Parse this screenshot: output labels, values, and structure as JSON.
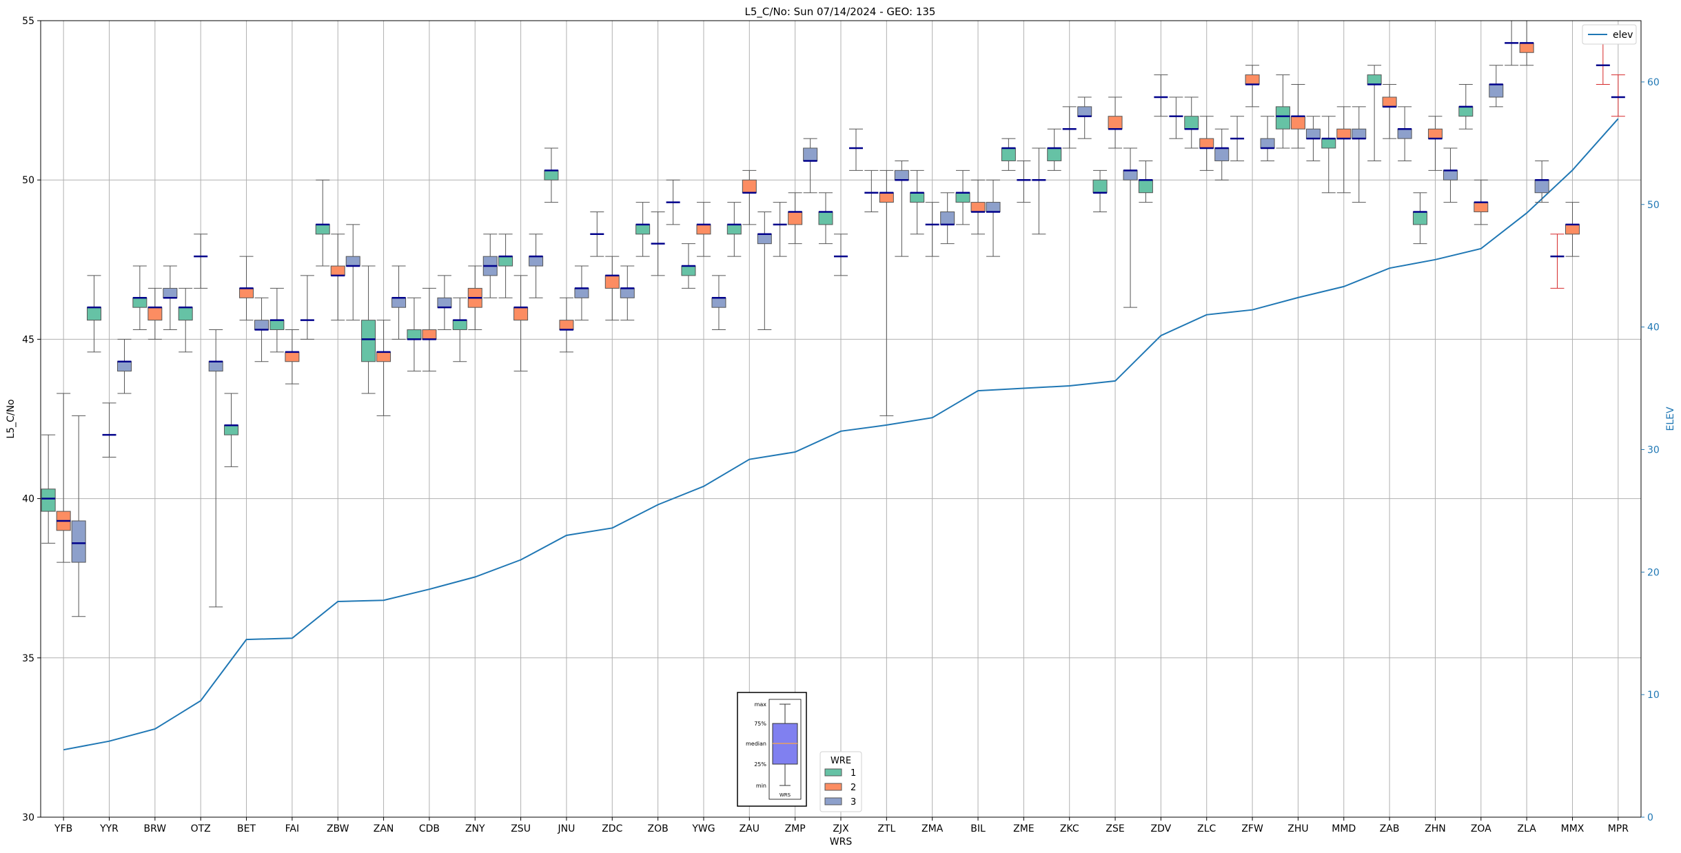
{
  "chart_data": {
    "type": "boxplot",
    "title": "L5_C/No: Sun 07/14/2024 - GEO: 135",
    "xlabel": "WRS",
    "ylabel": "L5_C/No",
    "y2label": "ELEV",
    "ylim": [
      30,
      55
    ],
    "y2lim": [
      0,
      65
    ],
    "yticks": [
      30,
      35,
      40,
      45,
      50,
      55
    ],
    "y2ticks": [
      0,
      10,
      20,
      30,
      40,
      50,
      60
    ],
    "grid": true,
    "categories": [
      "YFB",
      "YYR",
      "BRW",
      "OTZ",
      "BET",
      "FAI",
      "ZBW",
      "ZAN",
      "CDB",
      "ZNY",
      "ZSU",
      "JNU",
      "ZDC",
      "ZOB",
      "YWG",
      "ZAU",
      "ZMP",
      "ZJX",
      "ZTL",
      "ZMA",
      "BIL",
      "ZME",
      "ZKC",
      "ZSE",
      "ZDV",
      "ZLC",
      "ZFW",
      "ZHU",
      "MMD",
      "ZAB",
      "ZHN",
      "ZOA",
      "ZLA",
      "MMX",
      "MPR"
    ],
    "wre_colors": {
      "1": "#66c2a5",
      "2": "#fc8d62",
      "3": "#8da0cb"
    },
    "boxes": [
      {
        "cat": "YFB",
        "wre": 1,
        "min": 38.6,
        "q1": 39.6,
        "median": 40.0,
        "q3": 40.3,
        "max": 42.0
      },
      {
        "cat": "YFB",
        "wre": 2,
        "min": 38.0,
        "q1": 39.0,
        "median": 39.3,
        "q3": 39.6,
        "max": 43.3
      },
      {
        "cat": "YFB",
        "wre": 3,
        "min": 36.3,
        "q1": 38.0,
        "median": 38.6,
        "q3": 39.3,
        "max": 42.6
      },
      {
        "cat": "YYR",
        "wre": 1,
        "min": 44.6,
        "q1": 45.6,
        "median": 46.0,
        "q3": 46.0,
        "max": 47.0
      },
      {
        "cat": "YYR",
        "wre": 2,
        "min": 41.3,
        "q1": 42.0,
        "median": 42.0,
        "q3": 42.0,
        "max": 43.0
      },
      {
        "cat": "YYR",
        "wre": 3,
        "min": 43.3,
        "q1": 44.0,
        "median": 44.3,
        "q3": 44.3,
        "max": 45.0
      },
      {
        "cat": "BRW",
        "wre": 1,
        "min": 45.3,
        "q1": 46.0,
        "median": 46.3,
        "q3": 46.3,
        "max": 47.3
      },
      {
        "cat": "BRW",
        "wre": 2,
        "min": 45.0,
        "q1": 45.6,
        "median": 46.0,
        "q3": 46.0,
        "max": 46.6
      },
      {
        "cat": "BRW",
        "wre": 3,
        "min": 45.3,
        "q1": 46.3,
        "median": 46.3,
        "q3": 46.6,
        "max": 47.3
      },
      {
        "cat": "OTZ",
        "wre": 1,
        "min": 44.6,
        "q1": 45.6,
        "median": 46.0,
        "q3": 46.0,
        "max": 46.6
      },
      {
        "cat": "OTZ",
        "wre": 2,
        "min": 46.6,
        "q1": 47.6,
        "median": 47.6,
        "q3": 47.6,
        "max": 48.3
      },
      {
        "cat": "OTZ",
        "wre": 3,
        "min": 36.6,
        "q1": 44.0,
        "median": 44.3,
        "q3": 44.3,
        "max": 45.3
      },
      {
        "cat": "BET",
        "wre": 1,
        "min": 41.0,
        "q1": 42.0,
        "median": 42.3,
        "q3": 42.3,
        "max": 43.3
      },
      {
        "cat": "BET",
        "wre": 2,
        "min": 45.6,
        "q1": 46.3,
        "median": 46.6,
        "q3": 46.6,
        "max": 47.6
      },
      {
        "cat": "BET",
        "wre": 3,
        "min": 44.3,
        "q1": 45.3,
        "median": 45.3,
        "q3": 45.6,
        "max": 46.3
      },
      {
        "cat": "FAI",
        "wre": 1,
        "min": 44.6,
        "q1": 45.3,
        "median": 45.6,
        "q3": 45.6,
        "max": 46.6
      },
      {
        "cat": "FAI",
        "wre": 2,
        "min": 43.6,
        "q1": 44.3,
        "median": 44.6,
        "q3": 44.6,
        "max": 45.3
      },
      {
        "cat": "FAI",
        "wre": 3,
        "min": 45.0,
        "q1": 45.6,
        "median": 45.6,
        "q3": 45.6,
        "max": 47.0
      },
      {
        "cat": "ZBW",
        "wre": 1,
        "min": 47.3,
        "q1": 48.3,
        "median": 48.6,
        "q3": 48.6,
        "max": 50.0
      },
      {
        "cat": "ZBW",
        "wre": 2,
        "min": 45.6,
        "q1": 47.0,
        "median": 47.0,
        "q3": 47.3,
        "max": 48.3
      },
      {
        "cat": "ZBW",
        "wre": 3,
        "min": 45.6,
        "q1": 47.3,
        "median": 47.3,
        "q3": 47.6,
        "max": 48.6
      },
      {
        "cat": "ZAN",
        "wre": 1,
        "min": 43.3,
        "q1": 44.3,
        "median": 45.0,
        "q3": 45.6,
        "max": 47.3
      },
      {
        "cat": "ZAN",
        "wre": 2,
        "min": 42.6,
        "q1": 44.3,
        "median": 44.6,
        "q3": 44.6,
        "max": 45.6
      },
      {
        "cat": "ZAN",
        "wre": 3,
        "min": 45.0,
        "q1": 46.0,
        "median": 46.3,
        "q3": 46.3,
        "max": 47.3
      },
      {
        "cat": "CDB",
        "wre": 1,
        "min": 44.0,
        "q1": 45.0,
        "median": 45.0,
        "q3": 45.3,
        "max": 46.3
      },
      {
        "cat": "CDB",
        "wre": 2,
        "min": 44.0,
        "q1": 45.0,
        "median": 45.0,
        "q3": 45.3,
        "max": 46.6
      },
      {
        "cat": "CDB",
        "wre": 3,
        "min": 45.3,
        "q1": 46.0,
        "median": 46.0,
        "q3": 46.3,
        "max": 47.0
      },
      {
        "cat": "ZNY",
        "wre": 1,
        "min": 44.3,
        "q1": 45.3,
        "median": 45.6,
        "q3": 45.6,
        "max": 46.3
      },
      {
        "cat": "ZNY",
        "wre": 2,
        "min": 45.3,
        "q1": 46.0,
        "median": 46.3,
        "q3": 46.6,
        "max": 47.3
      },
      {
        "cat": "ZNY",
        "wre": 3,
        "min": 46.3,
        "q1": 47.0,
        "median": 47.3,
        "q3": 47.6,
        "max": 48.3
      },
      {
        "cat": "ZSU",
        "wre": 1,
        "min": 46.3,
        "q1": 47.3,
        "median": 47.6,
        "q3": 47.6,
        "max": 48.3
      },
      {
        "cat": "ZSU",
        "wre": 2,
        "min": 44.0,
        "q1": 45.6,
        "median": 46.0,
        "q3": 46.0,
        "max": 47.0
      },
      {
        "cat": "ZSU",
        "wre": 3,
        "min": 46.3,
        "q1": 47.3,
        "median": 47.6,
        "q3": 47.6,
        "max": 48.3
      },
      {
        "cat": "JNU",
        "wre": 1,
        "min": 49.3,
        "q1": 50.0,
        "median": 50.3,
        "q3": 50.3,
        "max": 51.0
      },
      {
        "cat": "JNU",
        "wre": 2,
        "min": 44.6,
        "q1": 45.3,
        "median": 45.3,
        "q3": 45.6,
        "max": 46.3
      },
      {
        "cat": "JNU",
        "wre": 3,
        "min": 45.6,
        "q1": 46.3,
        "median": 46.6,
        "q3": 46.6,
        "max": 47.3
      },
      {
        "cat": "ZDC",
        "wre": 1,
        "min": 47.6,
        "q1": 48.3,
        "median": 48.3,
        "q3": 48.3,
        "max": 49.0
      },
      {
        "cat": "ZDC",
        "wre": 2,
        "min": 45.6,
        "q1": 46.6,
        "median": 47.0,
        "q3": 47.0,
        "max": 47.6
      },
      {
        "cat": "ZDC",
        "wre": 3,
        "min": 45.6,
        "q1": 46.3,
        "median": 46.6,
        "q3": 46.6,
        "max": 47.3
      },
      {
        "cat": "ZOB",
        "wre": 1,
        "min": 47.6,
        "q1": 48.3,
        "median": 48.6,
        "q3": 48.6,
        "max": 49.3
      },
      {
        "cat": "ZOB",
        "wre": 2,
        "min": 47.0,
        "q1": 48.0,
        "median": 48.0,
        "q3": 48.0,
        "max": 49.0
      },
      {
        "cat": "ZOB",
        "wre": 3,
        "min": 48.6,
        "q1": 49.3,
        "median": 49.3,
        "q3": 49.3,
        "max": 50.0
      },
      {
        "cat": "YWG",
        "wre": 1,
        "min": 46.6,
        "q1": 47.0,
        "median": 47.3,
        "q3": 47.3,
        "max": 48.0
      },
      {
        "cat": "YWG",
        "wre": 2,
        "min": 47.6,
        "q1": 48.3,
        "median": 48.6,
        "q3": 48.6,
        "max": 49.3
      },
      {
        "cat": "YWG",
        "wre": 3,
        "min": 45.3,
        "q1": 46.0,
        "median": 46.3,
        "q3": 46.3,
        "max": 47.0
      },
      {
        "cat": "ZAU",
        "wre": 1,
        "min": 47.6,
        "q1": 48.3,
        "median": 48.6,
        "q3": 48.6,
        "max": 49.3
      },
      {
        "cat": "ZAU",
        "wre": 2,
        "min": 48.6,
        "q1": 49.6,
        "median": 49.6,
        "q3": 50.0,
        "max": 50.3
      },
      {
        "cat": "ZAU",
        "wre": 3,
        "min": 45.3,
        "q1": 48.0,
        "median": 48.3,
        "q3": 48.3,
        "max": 49.0
      },
      {
        "cat": "ZMP",
        "wre": 1,
        "min": 47.6,
        "q1": 48.6,
        "median": 48.6,
        "q3": 48.6,
        "max": 49.3
      },
      {
        "cat": "ZMP",
        "wre": 2,
        "min": 48.0,
        "q1": 48.6,
        "median": 49.0,
        "q3": 49.0,
        "max": 49.6
      },
      {
        "cat": "ZMP",
        "wre": 3,
        "min": 49.6,
        "q1": 50.6,
        "median": 50.6,
        "q3": 51.0,
        "max": 51.3
      },
      {
        "cat": "ZJX",
        "wre": 1,
        "min": 48.0,
        "q1": 48.6,
        "median": 49.0,
        "q3": 49.0,
        "max": 49.6
      },
      {
        "cat": "ZJX",
        "wre": 2,
        "min": 47.0,
        "q1": 47.6,
        "median": 47.6,
        "q3": 47.6,
        "max": 48.3
      },
      {
        "cat": "ZJX",
        "wre": 3,
        "min": 50.3,
        "q1": 51.0,
        "median": 51.0,
        "q3": 51.0,
        "max": 51.6
      },
      {
        "cat": "ZTL",
        "wre": 1,
        "min": 49.0,
        "q1": 49.6,
        "median": 49.6,
        "q3": 49.6,
        "max": 50.3
      },
      {
        "cat": "ZTL",
        "wre": 2,
        "min": 42.6,
        "q1": 49.3,
        "median": 49.6,
        "q3": 49.6,
        "max": 50.3
      },
      {
        "cat": "ZTL",
        "wre": 3,
        "min": 47.6,
        "q1": 50.0,
        "median": 50.0,
        "q3": 50.3,
        "max": 50.6
      },
      {
        "cat": "ZMA",
        "wre": 1,
        "min": 48.3,
        "q1": 49.3,
        "median": 49.6,
        "q3": 49.6,
        "max": 50.3
      },
      {
        "cat": "ZMA",
        "wre": 2,
        "min": 47.6,
        "q1": 48.6,
        "median": 48.6,
        "q3": 48.6,
        "max": 49.3
      },
      {
        "cat": "ZMA",
        "wre": 3,
        "min": 48.0,
        "q1": 48.6,
        "median": 48.6,
        "q3": 49.0,
        "max": 49.6
      },
      {
        "cat": "BIL",
        "wre": 1,
        "min": 48.6,
        "q1": 49.3,
        "median": 49.6,
        "q3": 49.6,
        "max": 50.3
      },
      {
        "cat": "BIL",
        "wre": 2,
        "min": 48.3,
        "q1": 49.0,
        "median": 49.0,
        "q3": 49.3,
        "max": 50.0
      },
      {
        "cat": "BIL",
        "wre": 3,
        "min": 47.6,
        "q1": 49.0,
        "median": 49.0,
        "q3": 49.3,
        "max": 50.0
      },
      {
        "cat": "ZME",
        "wre": 1,
        "min": 50.3,
        "q1": 50.6,
        "median": 51.0,
        "q3": 51.0,
        "max": 51.3
      },
      {
        "cat": "ZME",
        "wre": 2,
        "min": 49.3,
        "q1": 50.0,
        "median": 50.0,
        "q3": 50.0,
        "max": 50.6
      },
      {
        "cat": "ZME",
        "wre": 3,
        "min": 48.3,
        "q1": 50.0,
        "median": 50.0,
        "q3": 50.0,
        "max": 51.0
      },
      {
        "cat": "ZKC",
        "wre": 1,
        "min": 50.3,
        "q1": 50.6,
        "median": 51.0,
        "q3": 51.0,
        "max": 51.6
      },
      {
        "cat": "ZKC",
        "wre": 2,
        "min": 51.0,
        "q1": 51.6,
        "median": 51.6,
        "q3": 51.6,
        "max": 52.3
      },
      {
        "cat": "ZKC",
        "wre": 3,
        "min": 51.3,
        "q1": 52.0,
        "median": 52.0,
        "q3": 52.3,
        "max": 52.6
      },
      {
        "cat": "ZSE",
        "wre": 1,
        "min": 49.0,
        "q1": 49.6,
        "median": 49.6,
        "q3": 50.0,
        "max": 50.3
      },
      {
        "cat": "ZSE",
        "wre": 2,
        "min": 51.0,
        "q1": 51.6,
        "median": 51.6,
        "q3": 52.0,
        "max": 52.6
      },
      {
        "cat": "ZSE",
        "wre": 3,
        "min": 46.0,
        "q1": 50.0,
        "median": 50.3,
        "q3": 50.3,
        "max": 51.0
      },
      {
        "cat": "ZDV",
        "wre": 1,
        "min": 49.3,
        "q1": 49.6,
        "median": 50.0,
        "q3": 50.0,
        "max": 50.6
      },
      {
        "cat": "ZDV",
        "wre": 2,
        "min": 52.0,
        "q1": 52.6,
        "median": 52.6,
        "q3": 52.6,
        "max": 53.3
      },
      {
        "cat": "ZDV",
        "wre": 3,
        "min": 51.3,
        "q1": 52.0,
        "median": 52.0,
        "q3": 52.0,
        "max": 52.6
      },
      {
        "cat": "ZLC",
        "wre": 1,
        "min": 51.0,
        "q1": 51.6,
        "median": 51.6,
        "q3": 52.0,
        "max": 52.6
      },
      {
        "cat": "ZLC",
        "wre": 2,
        "min": 50.3,
        "q1": 51.0,
        "median": 51.0,
        "q3": 51.3,
        "max": 52.0
      },
      {
        "cat": "ZLC",
        "wre": 3,
        "min": 50.0,
        "q1": 50.6,
        "median": 51.0,
        "q3": 51.0,
        "max": 51.6
      },
      {
        "cat": "ZFW",
        "wre": 1,
        "min": 50.6,
        "q1": 51.3,
        "median": 51.3,
        "q3": 51.3,
        "max": 52.0
      },
      {
        "cat": "ZFW",
        "wre": 2,
        "min": 52.3,
        "q1": 53.0,
        "median": 53.0,
        "q3": 53.3,
        "max": 53.6
      },
      {
        "cat": "ZFW",
        "wre": 3,
        "min": 50.6,
        "q1": 51.0,
        "median": 51.0,
        "q3": 51.3,
        "max": 52.0
      },
      {
        "cat": "ZHU",
        "wre": 1,
        "min": 51.0,
        "q1": 51.6,
        "median": 52.0,
        "q3": 52.3,
        "max": 53.3
      },
      {
        "cat": "ZHU",
        "wre": 2,
        "min": 51.0,
        "q1": 51.6,
        "median": 52.0,
        "q3": 52.0,
        "max": 53.0
      },
      {
        "cat": "ZHU",
        "wre": 3,
        "min": 50.6,
        "q1": 51.3,
        "median": 51.3,
        "q3": 51.6,
        "max": 52.0
      },
      {
        "cat": "MMD",
        "wre": 1,
        "min": 49.6,
        "q1": 51.0,
        "median": 51.3,
        "q3": 51.3,
        "max": 52.0
      },
      {
        "cat": "MMD",
        "wre": 2,
        "min": 49.6,
        "q1": 51.3,
        "median": 51.3,
        "q3": 51.6,
        "max": 52.3
      },
      {
        "cat": "MMD",
        "wre": 3,
        "min": 49.3,
        "q1": 51.3,
        "median": 51.3,
        "q3": 51.6,
        "max": 52.3
      },
      {
        "cat": "ZAB",
        "wre": 1,
        "min": 50.6,
        "q1": 53.0,
        "median": 53.0,
        "q3": 53.3,
        "max": 53.6
      },
      {
        "cat": "ZAB",
        "wre": 2,
        "min": 51.3,
        "q1": 52.3,
        "median": 52.3,
        "q3": 52.6,
        "max": 53.0
      },
      {
        "cat": "ZAB",
        "wre": 3,
        "min": 50.6,
        "q1": 51.3,
        "median": 51.6,
        "q3": 51.6,
        "max": 52.3
      },
      {
        "cat": "ZHN",
        "wre": 1,
        "min": 48.0,
        "q1": 48.6,
        "median": 49.0,
        "q3": 49.0,
        "max": 49.6
      },
      {
        "cat": "ZHN",
        "wre": 2,
        "min": 50.3,
        "q1": 51.3,
        "median": 51.3,
        "q3": 51.6,
        "max": 52.0
      },
      {
        "cat": "ZHN",
        "wre": 3,
        "min": 49.3,
        "q1": 50.0,
        "median": 50.3,
        "q3": 50.3,
        "max": 51.0
      },
      {
        "cat": "ZOA",
        "wre": 1,
        "min": 51.6,
        "q1": 52.0,
        "median": 52.3,
        "q3": 52.3,
        "max": 53.0
      },
      {
        "cat": "ZOA",
        "wre": 2,
        "min": 48.6,
        "q1": 49.0,
        "median": 49.3,
        "q3": 49.3,
        "max": 50.0
      },
      {
        "cat": "ZOA",
        "wre": 3,
        "min": 52.3,
        "q1": 52.6,
        "median": 53.0,
        "q3": 53.0,
        "max": 53.6
      },
      {
        "cat": "ZLA",
        "wre": 1,
        "min": 53.6,
        "q1": 54.3,
        "median": 54.3,
        "q3": 54.3,
        "max": 55.0
      },
      {
        "cat": "ZLA",
        "wre": 2,
        "min": 53.6,
        "q1": 54.0,
        "median": 54.3,
        "q3": 54.3,
        "max": 55.0
      },
      {
        "cat": "ZLA",
        "wre": 3,
        "min": 49.3,
        "q1": 49.6,
        "median": 50.0,
        "q3": 50.0,
        "max": 50.6
      },
      {
        "cat": "MMX",
        "wre": 1,
        "min": 46.6,
        "q1": 47.6,
        "median": 47.6,
        "q3": 47.6,
        "max": 48.3,
        "red": true
      },
      {
        "cat": "MMX",
        "wre": 2,
        "min": 47.6,
        "q1": 48.3,
        "median": 48.6,
        "q3": 48.6,
        "max": 49.3
      },
      {
        "cat": "MPR",
        "wre": 1,
        "min": 53.0,
        "q1": 53.6,
        "median": 53.6,
        "q3": 53.6,
        "max": 54.3,
        "red": true
      },
      {
        "cat": "MPR",
        "wre": 2,
        "min": 52.0,
        "q1": 52.6,
        "median": 52.6,
        "q3": 52.6,
        "max": 53.3,
        "red": true
      }
    ],
    "series": [
      {
        "name": "elev",
        "axis": "right",
        "color": "#1f77b4",
        "values": [
          5.5,
          6.2,
          7.2,
          9.5,
          14.5,
          14.6,
          17.6,
          17.7,
          18.6,
          19.6,
          21.0,
          23.0,
          23.6,
          25.5,
          27.0,
          29.2,
          29.8,
          31.5,
          32.0,
          32.6,
          34.8,
          35.0,
          35.2,
          35.6,
          39.3,
          41.0,
          41.4,
          42.4,
          43.3,
          44.8,
          45.5,
          46.4,
          49.3,
          52.8,
          57.0
        ]
      }
    ],
    "legends": {
      "line": {
        "entries": [
          "elev"
        ],
        "placement": "top-right"
      },
      "wre": {
        "title": "WRE",
        "entries": [
          "1",
          "2",
          "3"
        ],
        "placement": "lower-center"
      }
    },
    "key_box": {
      "labels": [
        "max",
        "75%",
        "median",
        "25%",
        "min"
      ],
      "xlabel": "WRS"
    }
  }
}
